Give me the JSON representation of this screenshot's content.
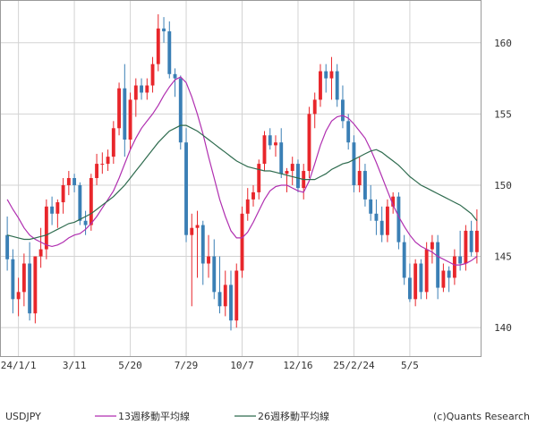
{
  "chart_data": {
    "type": "candlestick",
    "title": "",
    "symbol": "USDJPY",
    "credit": "(c)Quants Research",
    "y_axis": {
      "side": "right",
      "range": [
        138,
        163
      ],
      "ticks": [
        140,
        145,
        150,
        155,
        160
      ],
      "tick_labels": [
        "140",
        "145",
        "150",
        "155",
        "160"
      ]
    },
    "x_axis": {
      "tick_labels": [
        "24/1/1",
        "3/11",
        "5/20",
        "7/29",
        "10/7",
        "12/16",
        "25/2/24",
        "5/5"
      ],
      "tick_positions": [
        2,
        12,
        22,
        32,
        42,
        52,
        62,
        72
      ]
    },
    "grid": true,
    "colors": {
      "up": "#e8262b",
      "down": "#3a7fb5",
      "ma13": "#b02fb0",
      "ma26": "#2e6b4e",
      "grid": "#d3d3d3",
      "frame": "#9a9a9a"
    },
    "candles": [
      [
        146.5,
        147.8,
        144.0,
        144.8
      ],
      [
        144.8,
        145.5,
        141.0,
        142.0
      ],
      [
        142.0,
        143.5,
        140.8,
        142.5
      ],
      [
        142.5,
        145.2,
        141.5,
        144.5
      ],
      [
        144.5,
        146.0,
        140.5,
        141.0
      ],
      [
        141.0,
        145.0,
        140.3,
        145.0
      ],
      [
        145.0,
        147.0,
        144.2,
        145.5
      ],
      [
        145.5,
        149.0,
        144.8,
        148.5
      ],
      [
        148.5,
        149.2,
        147.2,
        148.0
      ],
      [
        148.0,
        149.0,
        147.0,
        148.8
      ],
      [
        148.8,
        150.5,
        148.0,
        150.0
      ],
      [
        150.0,
        151.0,
        149.3,
        150.5
      ],
      [
        150.5,
        150.8,
        149.5,
        150.0
      ],
      [
        150.0,
        150.2,
        147.2,
        147.5
      ],
      [
        147.5,
        148.2,
        146.5,
        147.2
      ],
      [
        147.2,
        150.8,
        146.8,
        150.5
      ],
      [
        150.5,
        152.2,
        150.0,
        151.5
      ],
      [
        151.5,
        152.3,
        150.8,
        151.5
      ],
      [
        151.5,
        152.5,
        151.0,
        152.0
      ],
      [
        152.0,
        154.5,
        151.5,
        154.0
      ],
      [
        154.0,
        157.2,
        153.5,
        156.8
      ],
      [
        156.8,
        158.5,
        152.0,
        153.2
      ],
      [
        153.2,
        156.5,
        152.5,
        156.0
      ],
      [
        156.0,
        157.5,
        154.8,
        157.0
      ],
      [
        157.0,
        157.5,
        156.0,
        156.5
      ],
      [
        156.5,
        157.5,
        156.0,
        157.0
      ],
      [
        157.0,
        159.0,
        156.5,
        158.5
      ],
      [
        158.5,
        162.0,
        158.0,
        161.0
      ],
      [
        161.0,
        161.8,
        160.0,
        160.8
      ],
      [
        160.8,
        161.5,
        157.5,
        157.8
      ],
      [
        157.8,
        158.2,
        156.2,
        157.5
      ],
      [
        157.5,
        157.7,
        152.5,
        153.0
      ],
      [
        153.0,
        154.0,
        146.0,
        146.5
      ],
      [
        146.5,
        148.0,
        141.5,
        147.0
      ],
      [
        147.0,
        148.2,
        143.5,
        147.2
      ],
      [
        147.2,
        147.5,
        143.0,
        144.5
      ],
      [
        144.5,
        146.5,
        143.5,
        145.0
      ],
      [
        145.0,
        146.2,
        142.0,
        142.5
      ],
      [
        142.5,
        145.0,
        141.0,
        141.5
      ],
      [
        141.5,
        144.0,
        140.8,
        143.0
      ],
      [
        143.0,
        144.0,
        139.8,
        140.5
      ],
      [
        140.5,
        144.5,
        140.0,
        144.0
      ],
      [
        144.0,
        148.5,
        143.5,
        148.0
      ],
      [
        148.0,
        149.8,
        147.5,
        149.0
      ],
      [
        149.0,
        150.0,
        148.5,
        149.5
      ],
      [
        149.5,
        151.8,
        149.0,
        151.5
      ],
      [
        151.5,
        153.8,
        151.0,
        153.5
      ],
      [
        153.5,
        154.0,
        152.5,
        152.8
      ],
      [
        152.8,
        153.5,
        152.0,
        153.0
      ],
      [
        153.0,
        154.0,
        150.5,
        150.8
      ],
      [
        150.8,
        151.2,
        149.5,
        151.0
      ],
      [
        151.0,
        152.0,
        150.0,
        151.5
      ],
      [
        151.5,
        151.8,
        149.5,
        149.8
      ],
      [
        149.8,
        151.5,
        149.0,
        151.0
      ],
      [
        151.0,
        155.5,
        150.5,
        155.0
      ],
      [
        155.0,
        156.5,
        154.0,
        156.0
      ],
      [
        156.0,
        158.5,
        155.5,
        158.0
      ],
      [
        158.0,
        158.5,
        156.5,
        157.5
      ],
      [
        157.5,
        159.0,
        156.0,
        158.0
      ],
      [
        158.0,
        158.5,
        155.5,
        156.0
      ],
      [
        156.0,
        157.0,
        154.0,
        154.5
      ],
      [
        154.5,
        155.0,
        152.5,
        153.0
      ],
      [
        153.0,
        153.5,
        149.5,
        150.0
      ],
      [
        150.0,
        152.0,
        149.5,
        151.0
      ],
      [
        151.0,
        151.5,
        148.5,
        149.0
      ],
      [
        149.0,
        150.0,
        147.5,
        148.0
      ],
      [
        148.0,
        149.0,
        146.5,
        147.5
      ],
      [
        147.5,
        148.5,
        146.0,
        146.5
      ],
      [
        146.5,
        149.0,
        146.0,
        148.5
      ],
      [
        148.5,
        149.5,
        148.0,
        149.2
      ],
      [
        149.2,
        149.5,
        145.5,
        146.0
      ],
      [
        146.0,
        146.5,
        143.0,
        143.5
      ],
      [
        143.5,
        144.5,
        141.8,
        142.0
      ],
      [
        142.0,
        144.8,
        141.5,
        144.5
      ],
      [
        144.5,
        144.8,
        142.0,
        142.5
      ],
      [
        142.5,
        146.0,
        142.0,
        145.5
      ],
      [
        145.5,
        146.5,
        144.5,
        146.0
      ],
      [
        146.0,
        146.5,
        142.0,
        142.8
      ],
      [
        142.8,
        144.5,
        142.5,
        144.0
      ],
      [
        144.0,
        144.3,
        142.5,
        143.5
      ],
      [
        143.5,
        145.5,
        143.0,
        145.0
      ],
      [
        145.0,
        146.8,
        144.0,
        144.5
      ],
      [
        144.5,
        147.2,
        144.0,
        146.8
      ],
      [
        146.8,
        147.5,
        145.0,
        145.3
      ],
      [
        145.3,
        148.3,
        144.5,
        146.8
      ]
    ],
    "series": [
      {
        "name": "13週移動平均線",
        "values": [
          149.0,
          148.3,
          147.7,
          147.0,
          146.5,
          146.2,
          146.0,
          145.8,
          145.7,
          145.8,
          146.0,
          146.3,
          146.5,
          146.6,
          146.9,
          147.3,
          147.8,
          148.4,
          149.0,
          149.6,
          150.5,
          151.5,
          152.5,
          153.3,
          154.0,
          154.5,
          155.0,
          155.6,
          156.3,
          156.9,
          157.4,
          157.6,
          157.2,
          156.2,
          155.0,
          153.6,
          152.0,
          150.5,
          149.0,
          147.8,
          146.8,
          146.3,
          146.3,
          146.7,
          147.4,
          148.2,
          149.0,
          149.6,
          149.9,
          150.0,
          150.0,
          149.8,
          149.6,
          149.5,
          150.3,
          151.5,
          152.8,
          153.8,
          154.5,
          154.8,
          154.9,
          154.7,
          154.3,
          153.8,
          153.3,
          152.5,
          151.6,
          150.6,
          149.6,
          148.6,
          147.8,
          147.1,
          146.5,
          146.0,
          145.7,
          145.5,
          145.3,
          145.0,
          144.8,
          144.6,
          144.4,
          144.4,
          144.5,
          144.7,
          145.0
        ]
      },
      {
        "name": "26週移動平均線",
        "values": [
          146.5,
          146.4,
          146.3,
          146.2,
          146.2,
          146.3,
          146.4,
          146.5,
          146.7,
          146.9,
          147.1,
          147.3,
          147.4,
          147.6,
          147.8,
          148.0,
          148.3,
          148.6,
          148.9,
          149.2,
          149.6,
          150.0,
          150.5,
          151.0,
          151.5,
          152.0,
          152.5,
          153.0,
          153.4,
          153.8,
          154.0,
          154.2,
          154.2,
          154.0,
          153.8,
          153.5,
          153.2,
          152.9,
          152.6,
          152.3,
          152.0,
          151.7,
          151.5,
          151.3,
          151.2,
          151.1,
          151.0,
          151.0,
          150.9,
          150.8,
          150.7,
          150.6,
          150.5,
          150.4,
          150.4,
          150.4,
          150.6,
          150.8,
          151.1,
          151.3,
          151.5,
          151.6,
          151.8,
          152.0,
          152.2,
          152.4,
          152.5,
          152.3,
          152.0,
          151.7,
          151.4,
          151.0,
          150.6,
          150.3,
          150.0,
          149.8,
          149.6,
          149.4,
          149.2,
          149.0,
          148.8,
          148.6,
          148.3,
          148.0,
          147.5
        ]
      }
    ]
  }
}
